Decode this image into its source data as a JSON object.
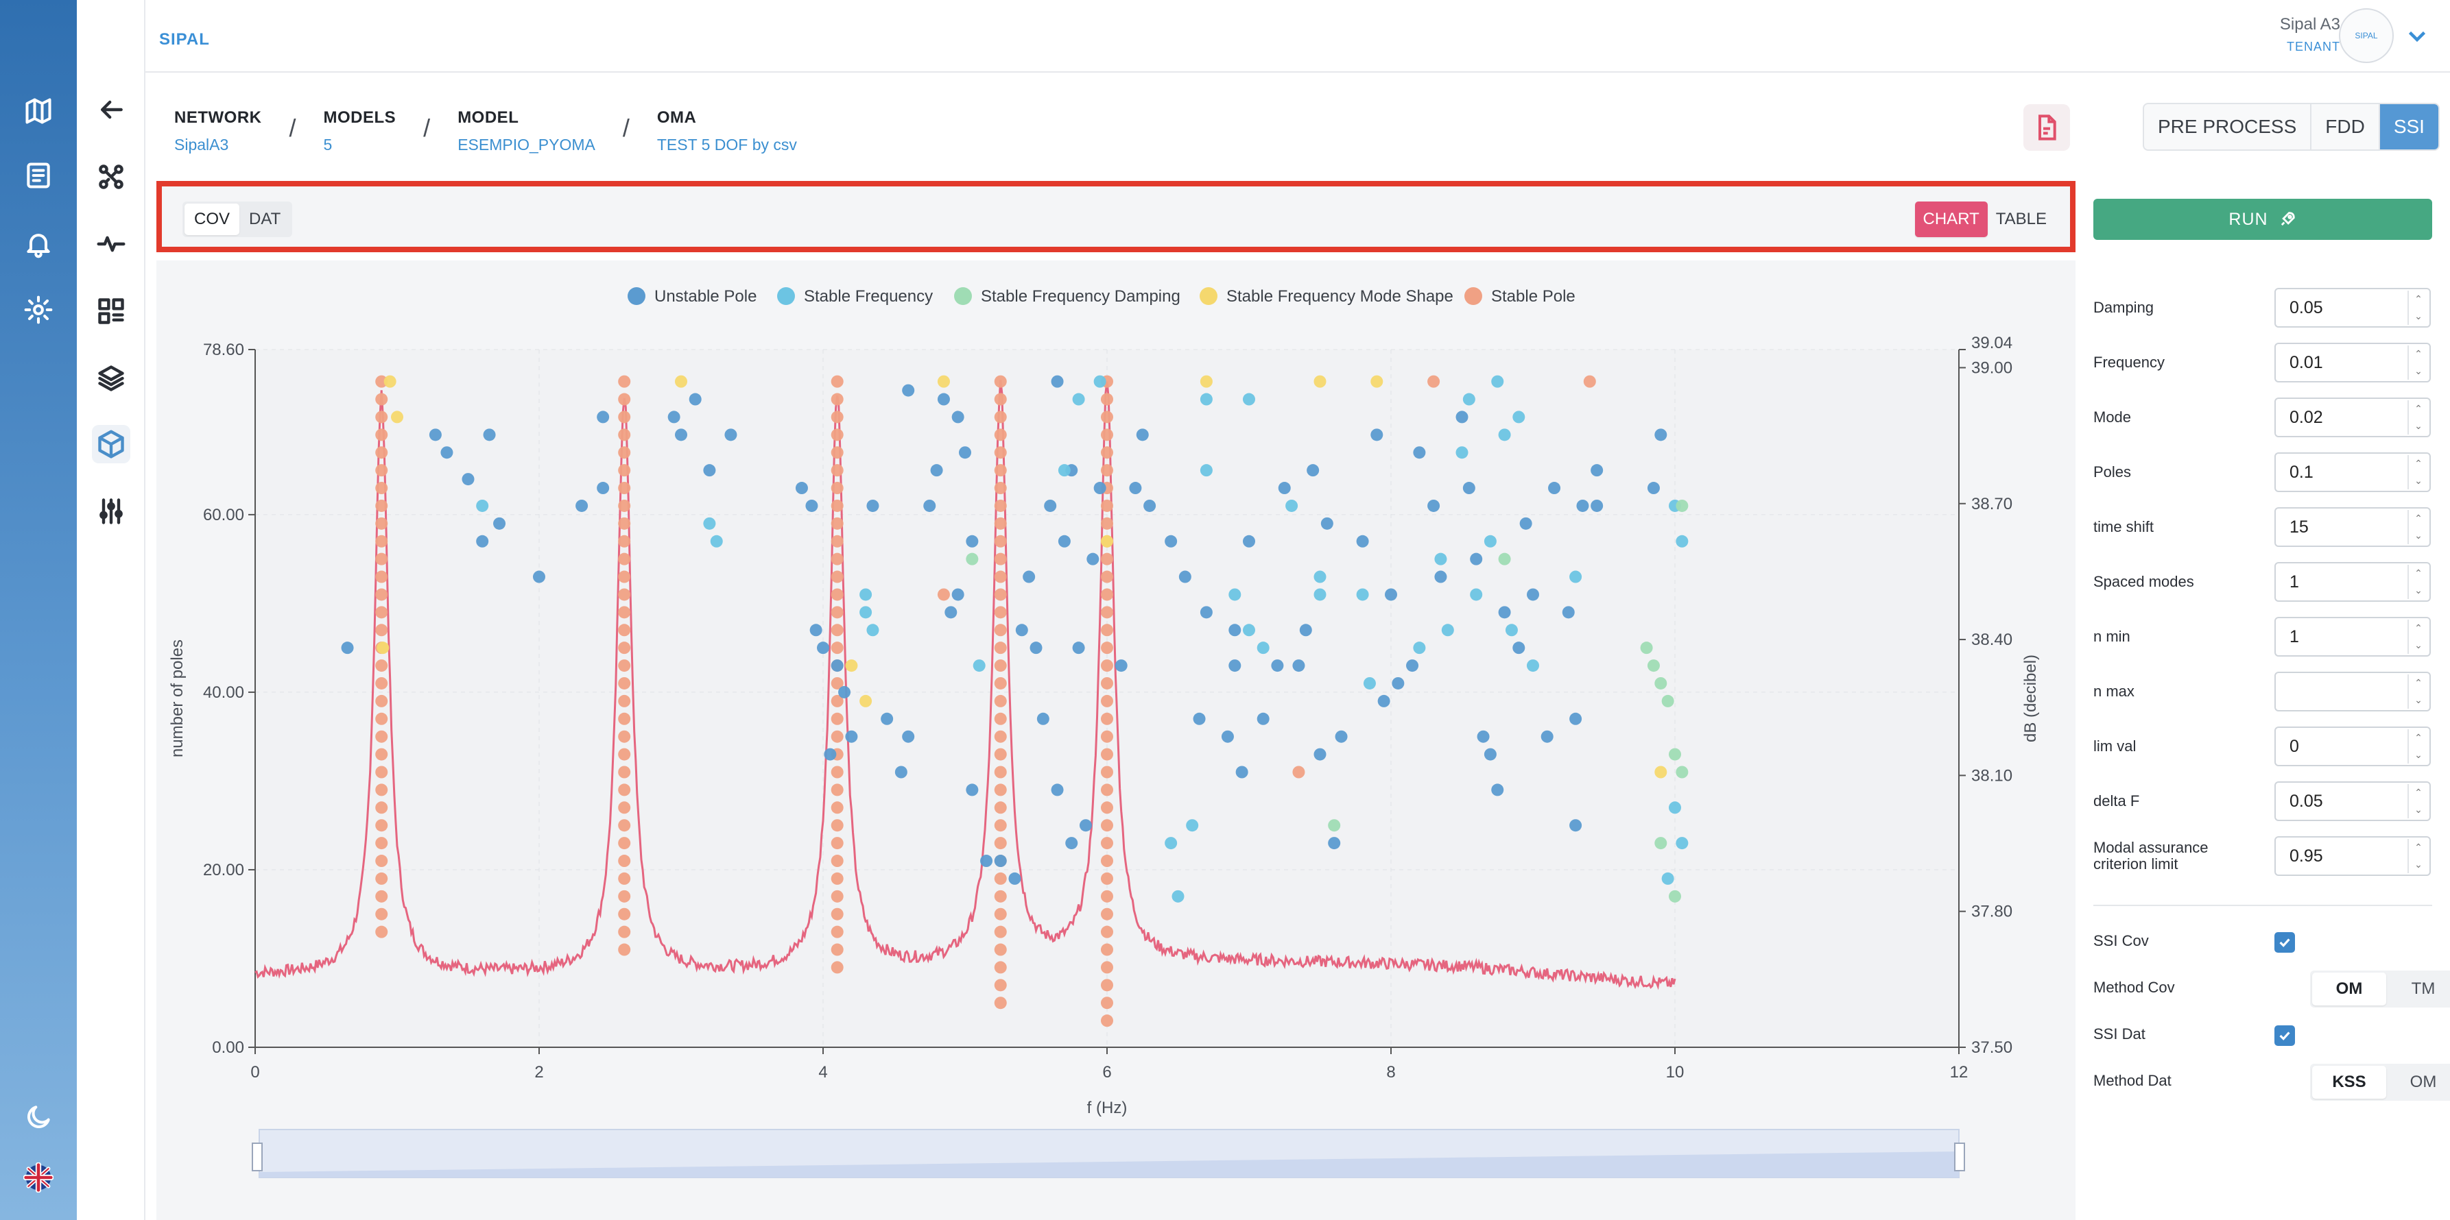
{
  "brand": {
    "logo_text": "SIPAL",
    "avatar_text": "SIPAL"
  },
  "tenant": {
    "name": "Sipal A3",
    "role": "TENANT"
  },
  "rail_icons": [
    "map-icon",
    "document-icon",
    "bell-icon",
    "gear-icon",
    "moon-icon",
    "uk-flag-icon"
  ],
  "subnav_icons": [
    "back-arrow-icon",
    "network-icon",
    "pulse-icon",
    "dashboard-icon",
    "layers-icon",
    "cube-icon",
    "sliders-icon"
  ],
  "breadcrumb": [
    {
      "key": "NETWORK",
      "value": "SipalA3"
    },
    {
      "key": "MODELS",
      "value": "5"
    },
    {
      "key": "MODEL",
      "value": "ESEMPIO_PYOMA"
    },
    {
      "key": "OMA",
      "value": "TEST 5 DOF by csv"
    }
  ],
  "method_tabs": [
    "PRE PROCESS",
    "FDD",
    "SSI"
  ],
  "method_selected": "SSI",
  "toolbar": {
    "left_tabs": [
      "COV",
      "DAT"
    ],
    "left_selected": "COV",
    "right_tabs": [
      "CHART",
      "TABLE"
    ],
    "right_selected": "CHART"
  },
  "run_label": "RUN",
  "params": [
    {
      "label": "Damping",
      "value": "0.05"
    },
    {
      "label": "Frequency",
      "value": "0.01"
    },
    {
      "label": "Mode",
      "value": "0.02"
    },
    {
      "label": "Poles",
      "value": "0.1"
    },
    {
      "label": "time shift",
      "value": "15"
    },
    {
      "label": "Spaced modes",
      "value": "1"
    },
    {
      "label": "n min",
      "value": "1"
    },
    {
      "label": "n max",
      "value": ""
    },
    {
      "label": "lim val",
      "value": "0"
    },
    {
      "label": "delta F",
      "value": "0.05"
    },
    {
      "label": "Modal assurance criterion limit",
      "value": "0.95"
    }
  ],
  "options": {
    "ssi_cov_label": "SSI Cov",
    "ssi_cov_checked": true,
    "method_cov_label": "Method Cov",
    "method_cov_options": [
      "OM",
      "TM"
    ],
    "method_cov_selected": "OM",
    "ssi_dat_label": "SSI Dat",
    "ssi_dat_checked": true,
    "method_dat_label": "Method Dat",
    "method_dat_options": [
      "KSS",
      "OM"
    ],
    "method_dat_selected": "KSS"
  },
  "colors": {
    "unstable_pole": "#5b9bd0",
    "stable_frequency": "#6cc4e3",
    "stable_frequency_damping": "#9fdcb4",
    "stable_frequency_mode_shape": "#f5d86e",
    "stable_pole": "#f0a184",
    "spectrum_line": "#e5657f",
    "accent": "#5598d4",
    "run": "#46a882",
    "chart_tab_on": "#e25277",
    "highlight": "#e23a2c"
  },
  "chart_data": {
    "type": "scatter",
    "xlabel": "f (Hz)",
    "ylabel": "number of poles",
    "y2label": "dB (decibel)",
    "xlim": [
      0,
      12
    ],
    "ylim": [
      0,
      78.6
    ],
    "y2lim": [
      37.5,
      39.04
    ],
    "x_ticks": [
      "0",
      "2",
      "4",
      "6",
      "8",
      "10",
      "12"
    ],
    "y_ticks": [
      "0.00",
      "20.00",
      "40.00",
      "60.00",
      "78.60"
    ],
    "y2_ticks": [
      "37.50",
      "37.80",
      "38.10",
      "38.40",
      "38.70",
      "39.00",
      "39.04"
    ],
    "legend": [
      "Unstable Pole",
      "Stable Frequency",
      "Stable Frequency Damping",
      "Stable Frequency Mode Shape",
      "Stable Pole"
    ],
    "legend_position": "top",
    "stable_pole_columns": [
      {
        "x": 0.89,
        "y_from": 13,
        "y_to": 75
      },
      {
        "x": 2.6,
        "y_from": 11,
        "y_to": 75
      },
      {
        "x": 4.1,
        "y_from": 9,
        "y_to": 75
      },
      {
        "x": 5.25,
        "y_from": 5,
        "y_to": 75
      },
      {
        "x": 6.0,
        "y_from": 3,
        "y_to": 75
      }
    ],
    "series": [
      {
        "name": "Unstable Pole",
        "points": [
          [
            0.65,
            45
          ],
          [
            1.27,
            69
          ],
          [
            1.35,
            67
          ],
          [
            1.5,
            64
          ],
          [
            1.6,
            57
          ],
          [
            1.65,
            69
          ],
          [
            1.72,
            59
          ],
          [
            2.0,
            53
          ],
          [
            2.3,
            61
          ],
          [
            2.45,
            63
          ],
          [
            2.45,
            71
          ],
          [
            2.95,
            71
          ],
          [
            3.0,
            69
          ],
          [
            3.1,
            73
          ],
          [
            3.2,
            65
          ],
          [
            3.35,
            69
          ],
          [
            3.85,
            63
          ],
          [
            3.92,
            61
          ],
          [
            3.95,
            47
          ],
          [
            4.0,
            45
          ],
          [
            4.05,
            33
          ],
          [
            4.1,
            43
          ],
          [
            4.15,
            40
          ],
          [
            4.2,
            35
          ],
          [
            4.35,
            61
          ],
          [
            4.45,
            37
          ],
          [
            4.55,
            31
          ],
          [
            4.6,
            35
          ],
          [
            4.6,
            74
          ],
          [
            4.75,
            61
          ],
          [
            4.8,
            65
          ],
          [
            4.85,
            73
          ],
          [
            4.9,
            49
          ],
          [
            4.95,
            71
          ],
          [
            4.95,
            51
          ],
          [
            5.0,
            67
          ],
          [
            5.05,
            57
          ],
          [
            5.05,
            29
          ],
          [
            5.15,
            21
          ],
          [
            5.25,
            21
          ],
          [
            5.35,
            19
          ],
          [
            5.4,
            47
          ],
          [
            5.45,
            53
          ],
          [
            5.5,
            45
          ],
          [
            5.55,
            37
          ],
          [
            5.6,
            61
          ],
          [
            5.65,
            29
          ],
          [
            5.65,
            75
          ],
          [
            5.7,
            57
          ],
          [
            5.75,
            65
          ],
          [
            5.75,
            23
          ],
          [
            5.8,
            45
          ],
          [
            5.85,
            25
          ],
          [
            5.9,
            55
          ],
          [
            5.95,
            63
          ],
          [
            6.1,
            43
          ],
          [
            6.2,
            63
          ],
          [
            6.25,
            69
          ],
          [
            6.3,
            61
          ],
          [
            6.45,
            57
          ],
          [
            6.55,
            53
          ],
          [
            6.65,
            37
          ],
          [
            6.7,
            49
          ],
          [
            6.85,
            35
          ],
          [
            6.9,
            43
          ],
          [
            6.9,
            47
          ],
          [
            6.95,
            31
          ],
          [
            7.0,
            57
          ],
          [
            7.1,
            37
          ],
          [
            7.2,
            43
          ],
          [
            7.25,
            63
          ],
          [
            7.35,
            43
          ],
          [
            7.4,
            47
          ],
          [
            7.45,
            65
          ],
          [
            7.5,
            33
          ],
          [
            7.55,
            59
          ],
          [
            7.6,
            23
          ],
          [
            7.65,
            35
          ],
          [
            7.8,
            57
          ],
          [
            7.9,
            69
          ],
          [
            7.95,
            39
          ],
          [
            8.0,
            51
          ],
          [
            8.05,
            41
          ],
          [
            8.15,
            43
          ],
          [
            8.2,
            67
          ],
          [
            8.3,
            61
          ],
          [
            8.35,
            53
          ],
          [
            8.5,
            71
          ],
          [
            8.55,
            63
          ],
          [
            8.6,
            55
          ],
          [
            8.65,
            35
          ],
          [
            8.7,
            33
          ],
          [
            8.75,
            29
          ],
          [
            8.8,
            49
          ],
          [
            8.9,
            45
          ],
          [
            8.95,
            59
          ],
          [
            9.0,
            51
          ],
          [
            9.1,
            35
          ],
          [
            9.15,
            63
          ],
          [
            9.25,
            49
          ],
          [
            9.3,
            37
          ],
          [
            9.35,
            61
          ],
          [
            9.45,
            65
          ],
          [
            9.3,
            25
          ],
          [
            9.45,
            61
          ],
          [
            9.85,
            63
          ],
          [
            9.9,
            69
          ]
        ]
      },
      {
        "name": "Stable Frequency",
        "points": [
          [
            1.6,
            61
          ],
          [
            3.2,
            59
          ],
          [
            3.25,
            57
          ],
          [
            4.3,
            51
          ],
          [
            4.3,
            49
          ],
          [
            4.35,
            47
          ],
          [
            5.1,
            43
          ],
          [
            5.7,
            65
          ],
          [
            5.8,
            73
          ],
          [
            5.95,
            75
          ],
          [
            6.45,
            23
          ],
          [
            6.5,
            17
          ],
          [
            6.6,
            25
          ],
          [
            6.7,
            65
          ],
          [
            6.7,
            73
          ],
          [
            6.9,
            51
          ],
          [
            7.0,
            47
          ],
          [
            7.0,
            73
          ],
          [
            7.1,
            45
          ],
          [
            7.3,
            61
          ],
          [
            7.5,
            53
          ],
          [
            7.5,
            51
          ],
          [
            7.8,
            51
          ],
          [
            7.85,
            41
          ],
          [
            8.2,
            45
          ],
          [
            8.35,
            55
          ],
          [
            8.4,
            47
          ],
          [
            8.5,
            67
          ],
          [
            8.55,
            73
          ],
          [
            8.6,
            51
          ],
          [
            8.7,
            57
          ],
          [
            8.75,
            75
          ],
          [
            8.8,
            69
          ],
          [
            8.85,
            47
          ],
          [
            8.9,
            71
          ],
          [
            9.0,
            43
          ],
          [
            9.3,
            53
          ],
          [
            9.95,
            19
          ],
          [
            10.0,
            61
          ],
          [
            10.05,
            57
          ],
          [
            10.0,
            27
          ],
          [
            10.05,
            23
          ]
        ]
      },
      {
        "name": "Stable Frequency Damping",
        "points": [
          [
            5.05,
            55
          ],
          [
            8.8,
            55
          ],
          [
            9.8,
            45
          ],
          [
            9.85,
            43
          ],
          [
            9.9,
            41
          ],
          [
            9.95,
            39
          ],
          [
            10.0,
            17
          ],
          [
            10.05,
            61
          ],
          [
            7.6,
            25
          ],
          [
            9.9,
            23
          ],
          [
            10.0,
            33
          ],
          [
            10.05,
            31
          ]
        ]
      },
      {
        "name": "Stable Frequency Mode Shape",
        "points": [
          [
            0.9,
            45
          ],
          [
            0.95,
            75
          ],
          [
            1.0,
            71
          ],
          [
            3.0,
            75
          ],
          [
            4.2,
            43
          ],
          [
            4.3,
            39
          ],
          [
            4.85,
            75
          ],
          [
            6.0,
            57
          ],
          [
            6.7,
            75
          ],
          [
            7.5,
            75
          ],
          [
            7.9,
            75
          ],
          [
            9.9,
            31
          ]
        ]
      },
      {
        "name": "Stable Pole",
        "points": [
          [
            4.85,
            51
          ],
          [
            7.35,
            31
          ],
          [
            8.3,
            75
          ],
          [
            9.4,
            75
          ]
        ]
      }
    ],
    "spectrum_peaks_hz": [
      0.89,
      2.6,
      4.1,
      5.25,
      6.0
    ],
    "spectrum_y_range_db": [
      37.58,
      39.0
    ]
  }
}
